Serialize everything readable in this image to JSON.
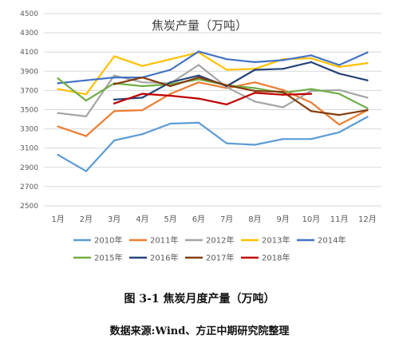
{
  "caption": "图 3-1   焦炭月度产量（万吨）",
  "source": "数据来源:Wind、方正中期研究院整理",
  "chart_data": {
    "type": "line",
    "title": "焦炭产量（万吨）",
    "xlabel": "",
    "ylabel": "",
    "categories": [
      "1月",
      "2月",
      "3月",
      "4月",
      "5月",
      "6月",
      "7月",
      "8月",
      "9月",
      "10月",
      "11月",
      "12月"
    ],
    "ylim": [
      2500,
      4500
    ],
    "yticks": [
      2500,
      2700,
      2900,
      3100,
      3300,
      3500,
      3700,
      3900,
      4100,
      4300,
      4500
    ],
    "grid": true,
    "legend_position": "bottom",
    "series": [
      {
        "name": "2010年",
        "color": "#5B9BD5",
        "values": [
          3030,
          2860,
          3180,
          3245,
          3355,
          3365,
          3150,
          3135,
          3195,
          3195,
          3265,
          3425
        ]
      },
      {
        "name": "2011年",
        "color": "#ED7D31",
        "values": [
          3325,
          3225,
          3485,
          3495,
          3665,
          3785,
          3725,
          3785,
          3705,
          3575,
          3345,
          3495
        ]
      },
      {
        "name": "2012年",
        "color": "#A5A5A5",
        "values": [
          3465,
          3430,
          3855,
          3785,
          3775,
          3965,
          3735,
          3585,
          3525,
          3695,
          3705,
          3625
        ]
      },
      {
        "name": "2013年",
        "color": "#FFC000",
        "values": [
          3715,
          3660,
          4055,
          3955,
          4025,
          4095,
          3915,
          3925,
          4025,
          4035,
          3945,
          3985
        ]
      },
      {
        "name": "2014年",
        "color": "#4472C4",
        "values": [
          3775,
          3805,
          3835,
          3835,
          3915,
          4105,
          4025,
          3995,
          4015,
          4065,
          3965,
          4095
        ]
      },
      {
        "name": "2015年",
        "color": "#70AD47",
        "values": [
          3825,
          3595,
          3775,
          3745,
          3765,
          3815,
          3755,
          3725,
          3675,
          3715,
          3665,
          3515
        ]
      },
      {
        "name": "2016年",
        "color": "#264478",
        "values": [
          null,
          null,
          3605,
          3625,
          3785,
          3855,
          3745,
          3915,
          3925,
          3995,
          3875,
          3805
        ]
      },
      {
        "name": "2017年",
        "color": "#843C0C",
        "values": [
          null,
          null,
          3765,
          3835,
          3745,
          3835,
          3755,
          3695,
          3685,
          3485,
          3445,
          3495
        ]
      },
      {
        "name": "2018年",
        "color": "#C00000",
        "values": [
          null,
          null,
          3565,
          3665,
          3645,
          3615,
          3555,
          3675,
          3655,
          3665,
          null,
          null
        ]
      }
    ]
  }
}
